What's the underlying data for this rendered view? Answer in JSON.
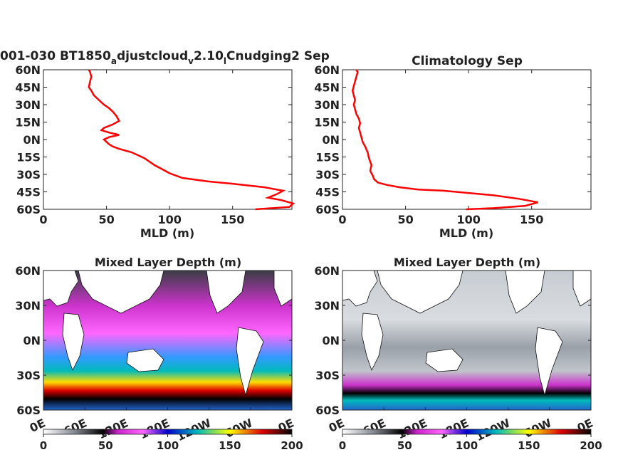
{
  "figure": {
    "panels": [
      {
        "title_prefix": "001-030 BT1850",
        "title_sub1": "a",
        "title_mid": "djustcloud",
        "title_sub2": "v",
        "title_mid2": "2.10",
        "title_sub3": "l",
        "title_end": "Cnudging2 Sep"
      },
      {
        "title": "Climatology Sep"
      },
      {
        "title": "Mixed Layer Depth (m)"
      },
      {
        "title": "Mixed Layer Depth (m)"
      }
    ]
  },
  "chart_data": [
    {
      "type": "line",
      "title": "001-030 BT1850adjustcloudv2.10lCnudging2 Sep",
      "xlabel": "MLD (m)",
      "ylabel": "",
      "xlim": [
        0,
        197
      ],
      "ylim": [
        -60,
        60
      ],
      "xticks": [
        0,
        50,
        100,
        150
      ],
      "yticks": [
        "60S",
        "45S",
        "30S",
        "15S",
        "0N",
        "15N",
        "30N",
        "45N",
        "60N"
      ],
      "series": [
        {
          "color": "#ff0000",
          "points": [
            [
              168,
              -60
            ],
            [
              195,
              -58
            ],
            [
              198,
              -55
            ],
            [
              188,
              -52
            ],
            [
              178,
              -50
            ],
            [
              185,
              -47
            ],
            [
              190,
              -44
            ],
            [
              175,
              -41
            ],
            [
              150,
              -38
            ],
            [
              130,
              -36
            ],
            [
              110,
              -33
            ],
            [
              100,
              -29
            ],
            [
              95,
              -26
            ],
            [
              88,
              -22
            ],
            [
              80,
              -16
            ],
            [
              70,
              -11
            ],
            [
              60,
              -8
            ],
            [
              55,
              -6
            ],
            [
              52,
              -4
            ],
            [
              50,
              -2
            ],
            [
              48,
              0
            ],
            [
              52,
              2
            ],
            [
              60,
              4
            ],
            [
              52,
              6
            ],
            [
              46,
              8
            ],
            [
              48,
              10
            ],
            [
              55,
              13
            ],
            [
              60,
              16
            ],
            [
              58,
              20
            ],
            [
              55,
              24
            ],
            [
              52,
              27
            ],
            [
              48,
              30
            ],
            [
              44,
              34
            ],
            [
              40,
              38
            ],
            [
              38,
              42
            ],
            [
              36,
              45
            ],
            [
              37,
              50
            ],
            [
              38,
              54
            ],
            [
              37,
              58
            ],
            [
              36,
              60
            ]
          ]
        }
      ]
    },
    {
      "type": "line",
      "title": "Climatology Sep",
      "xlabel": "MLD (m)",
      "ylabel": "",
      "xlim": [
        0,
        197
      ],
      "ylim": [
        -60,
        60
      ],
      "xticks": [
        0,
        50,
        100,
        150
      ],
      "yticks": [
        "60S",
        "45S",
        "30S",
        "15S",
        "0N",
        "15N",
        "30N",
        "45N",
        "60N"
      ],
      "series": [
        {
          "color": "#ff0000",
          "points": [
            [
              98,
              -60
            ],
            [
              120,
              -59
            ],
            [
              145,
              -57
            ],
            [
              155,
              -54
            ],
            [
              140,
              -51
            ],
            [
              120,
              -48
            ],
            [
              100,
              -46
            ],
            [
              80,
              -44
            ],
            [
              60,
              -43
            ],
            [
              45,
              -41
            ],
            [
              35,
              -39
            ],
            [
              28,
              -37
            ],
            [
              25,
              -34
            ],
            [
              24,
              -31
            ],
            [
              22,
              -27
            ],
            [
              23,
              -22
            ],
            [
              21,
              -16
            ],
            [
              20,
              -11
            ],
            [
              18,
              -6
            ],
            [
              16,
              -2
            ],
            [
              15,
              2
            ],
            [
              14,
              6
            ],
            [
              13,
              10
            ],
            [
              14,
              14
            ],
            [
              13,
              18
            ],
            [
              11,
              22
            ],
            [
              10,
              26
            ],
            [
              9,
              30
            ],
            [
              10,
              34
            ],
            [
              9,
              38
            ],
            [
              8,
              42
            ],
            [
              9,
              46
            ],
            [
              10,
              50
            ],
            [
              11,
              54
            ],
            [
              12,
              58
            ],
            [
              11,
              60
            ]
          ]
        }
      ]
    },
    {
      "type": "heatmap",
      "title": "Mixed Layer Depth (m)",
      "xticks": [
        "0E",
        "60E",
        "120E",
        "180E",
        "120W",
        "60W",
        "0E"
      ],
      "yticks": [
        "60S",
        "30S",
        "0N",
        "30N",
        "60N"
      ],
      "colorbar": {
        "ticks": [
          0,
          50,
          100,
          150,
          200
        ],
        "colors": [
          "#ffffff",
          "#8a8f96",
          "#000000",
          "#cc22cc",
          "#ff66ff",
          "#0000cc",
          "#00bbbb",
          "#ffff00",
          "#dd0000",
          "#000000"
        ]
      }
    },
    {
      "type": "heatmap",
      "title": "Mixed Layer Depth (m)",
      "xticks": [
        "0E",
        "60E",
        "120E",
        "180E",
        "120W",
        "60W",
        "0E"
      ],
      "yticks": [
        "60S",
        "30S",
        "0N",
        "30N",
        "60N"
      ],
      "colorbar": {
        "ticks": [
          0,
          50,
          100,
          150,
          200
        ],
        "colors": [
          "#ffffff",
          "#8a8f96",
          "#000000",
          "#cc22cc",
          "#ff66ff",
          "#0000cc",
          "#00bbbb",
          "#ffff00",
          "#dd0000",
          "#000000"
        ]
      }
    }
  ]
}
